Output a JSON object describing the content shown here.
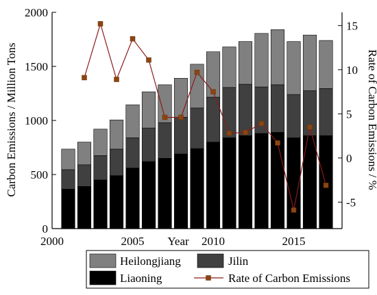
{
  "chart_data": {
    "type": "bar",
    "stacked": true,
    "xlabel": "Year",
    "ylabel": "Carbon Emissions / Million Tons",
    "ylabel_right": "Rate of Carbon Emissions / %",
    "xlim": [
      2000,
      2018
    ],
    "ylim": [
      0,
      2000
    ],
    "ylim_right": [
      -8,
      16.5
    ],
    "x_ticks": [
      2000,
      2005,
      2010,
      2015
    ],
    "y_ticks": [
      0,
      500,
      1000,
      1500,
      2000
    ],
    "y_ticks_right": [
      -5,
      0,
      5,
      10,
      15
    ],
    "x": [
      2001,
      2002,
      2003,
      2004,
      2005,
      2006,
      2007,
      2008,
      2009,
      2010,
      2011,
      2012,
      2013,
      2014,
      2015,
      2016,
      2017
    ],
    "series": [
      {
        "name": "Liaoning",
        "color": "#000000",
        "values": [
          365,
          390,
          450,
          490,
          560,
          620,
          650,
          690,
          740,
          800,
          840,
          860,
          880,
          890,
          840,
          860,
          860
        ]
      },
      {
        "name": "Jilin",
        "color": "#404040",
        "values": [
          180,
          200,
          225,
          245,
          280,
          310,
          330,
          340,
          375,
          415,
          465,
          475,
          430,
          440,
          400,
          415,
          435
        ]
      },
      {
        "name": "Heilongjiang",
        "color": "#808080",
        "values": [
          190,
          210,
          245,
          270,
          305,
          335,
          350,
          360,
          405,
          420,
          375,
          395,
          495,
          510,
          490,
          515,
          445
        ]
      }
    ],
    "line_series": {
      "name": "Rate of Carbon Emissions",
      "axis": "right",
      "line_color": "#8b1a1a",
      "marker_color": "#8b4513",
      "x": [
        2002,
        2003,
        2004,
        2005,
        2006,
        2007,
        2008,
        2009,
        2010,
        2011,
        2012,
        2013,
        2014,
        2015,
        2016,
        2017
      ],
      "values": [
        9.1,
        15.2,
        8.9,
        13.5,
        11.1,
        4.6,
        4.6,
        9.7,
        7.5,
        2.8,
        2.9,
        3.9,
        1.7,
        -5.9,
        3.5,
        -3.1
      ]
    },
    "legend": {
      "placement": "bottom",
      "entries": [
        "Heilongjiang",
        "Jilin",
        "Liaoning",
        "Rate of Carbon Emissions"
      ]
    },
    "grid": false
  }
}
